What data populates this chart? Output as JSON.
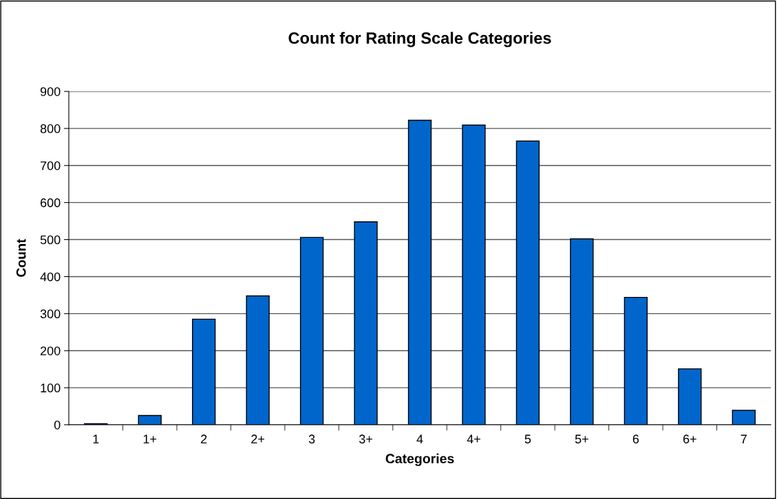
{
  "chart_data": {
    "type": "bar",
    "title": "Count for Rating Scale Categories",
    "xlabel": "Categories",
    "ylabel": "Count",
    "categories": [
      "1",
      "1+",
      "2",
      "2+",
      "3",
      "3+",
      "4",
      "4+",
      "5",
      "5+",
      "6",
      "6+",
      "7"
    ],
    "series": [
      {
        "color": "#0066cc",
        "values": [
          3,
          25,
          285,
          348,
          506,
          548,
          822,
          809,
          766,
          502,
          344,
          151,
          39
        ]
      }
    ],
    "ylim": [
      0,
      900
    ],
    "yticks": [
      0,
      100,
      200,
      300,
      400,
      500,
      600,
      700,
      800,
      900
    ],
    "grid": "y",
    "legend": false
  }
}
